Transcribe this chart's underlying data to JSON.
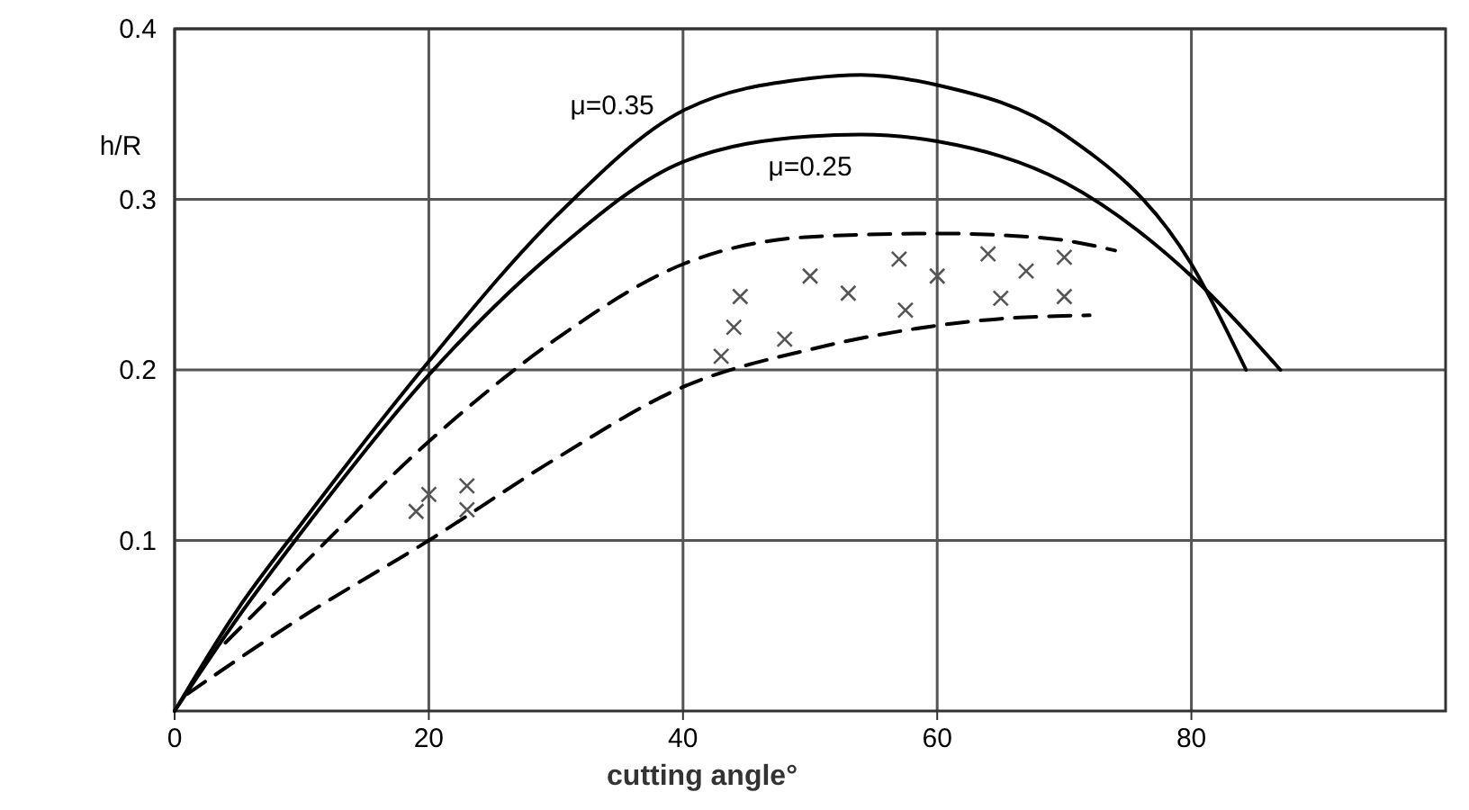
{
  "chart_data": {
    "type": "line",
    "xlabel": "cutting angle°",
    "ylabel": "h/R",
    "xlim": [
      0,
      100
    ],
    "ylim": [
      0,
      0.4
    ],
    "xticks": [
      0,
      20,
      40,
      60,
      80
    ],
    "yticks": [
      0.1,
      0.2,
      0.3,
      0.4
    ],
    "grid": true,
    "series": [
      {
        "name": "μ=0.35",
        "color": "#000000",
        "line_style": "solid",
        "x": [
          0,
          5,
          10,
          20,
          30,
          40,
          50,
          54,
          60,
          70,
          80,
          84.3
        ],
        "values": [
          0,
          0.06,
          0.11,
          0.205,
          0.29,
          0.352,
          0.371,
          0.373,
          0.367,
          0.338,
          0.262,
          0.2
        ]
      },
      {
        "name": "μ=0.25",
        "color": "#000000",
        "line_style": "solid",
        "x": [
          0,
          5,
          10,
          20,
          30,
          40,
          50,
          54,
          60,
          70,
          80,
          87
        ],
        "values": [
          0,
          0.055,
          0.105,
          0.197,
          0.27,
          0.322,
          0.337,
          0.338,
          0.334,
          0.31,
          0.255,
          0.2
        ]
      },
      {
        "color": "#000000",
        "line_style": "dashed",
        "x": [
          4,
          10,
          20,
          30,
          40,
          50,
          60,
          65,
          70,
          74
        ],
        "values": [
          0.04,
          0.085,
          0.158,
          0.218,
          0.262,
          0.278,
          0.28,
          0.279,
          0.276,
          0.27
        ]
      },
      {
        "color": "#000000",
        "line_style": "dashed",
        "x": [
          1,
          10,
          20,
          30,
          40,
          50,
          60,
          65,
          72
        ],
        "values": [
          0.01,
          0.055,
          0.1,
          0.148,
          0.19,
          0.212,
          0.226,
          0.23,
          0.232
        ]
      },
      {
        "type": "scatter",
        "color": "#555555",
        "marker": "cross",
        "x": [
          19,
          20,
          23,
          23,
          43,
          44,
          44.5,
          48,
          50,
          53,
          57,
          57.5,
          60,
          64,
          65,
          67,
          70,
          70
        ],
        "values": [
          0.117,
          0.127,
          0.132,
          0.118,
          0.208,
          0.225,
          0.243,
          0.218,
          0.255,
          0.245,
          0.265,
          0.235,
          0.255,
          0.268,
          0.242,
          0.258,
          0.266,
          0.243
        ]
      }
    ]
  }
}
